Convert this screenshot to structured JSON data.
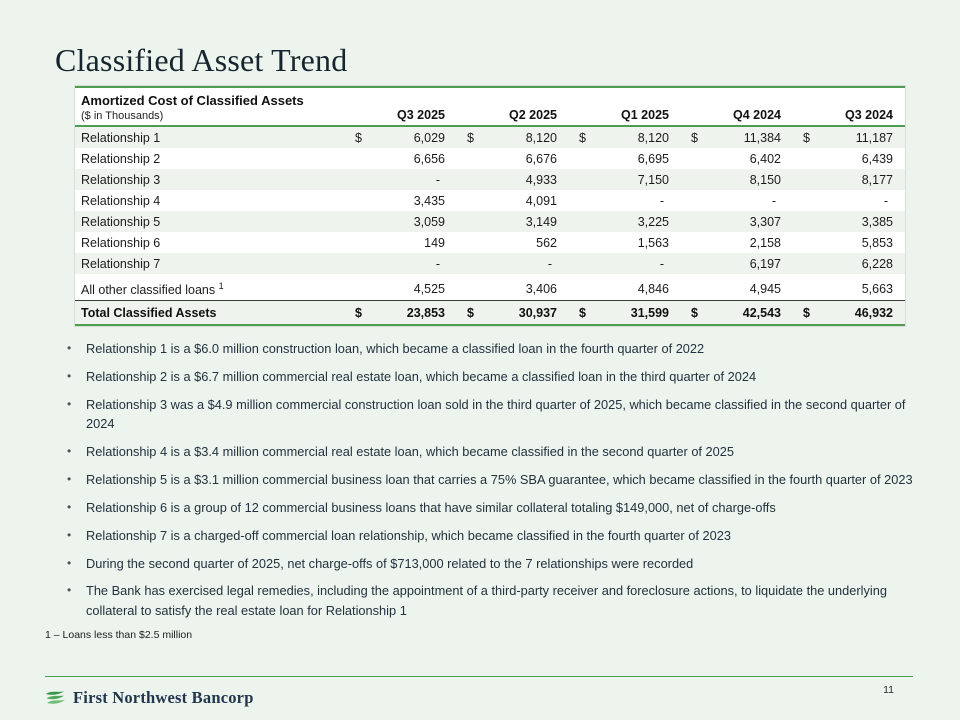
{
  "slide": {
    "title": "Classified Asset Trend",
    "page_number": "11",
    "footnote": "1 – Loans less than $2.5 million",
    "logo_text": "First Northwest Bancorp"
  },
  "colors": {
    "background": "#edf3ed",
    "accent_green": "#4f9d53",
    "title_text": "#16262e",
    "logo_navy": "#21364c",
    "row_stripe": "#eef3ee"
  },
  "icons": {
    "logo": "green-waves-icon"
  },
  "table": {
    "title": "Amortized Cost of Classified Assets",
    "subtitle": "($ in Thousands)",
    "currency_symbol": "$",
    "columns": [
      "Q3 2025",
      "Q2 2025",
      "Q1 2025",
      "Q4 2024",
      "Q3 2024"
    ],
    "rows": [
      {
        "label": "Relationship 1",
        "show_dollar": true,
        "footnote_ref": "",
        "values": [
          "6,029",
          "8,120",
          "8,120",
          "11,384",
          "11,187"
        ]
      },
      {
        "label": "Relationship 2",
        "show_dollar": false,
        "footnote_ref": "",
        "values": [
          "6,656",
          "6,676",
          "6,695",
          "6,402",
          "6,439"
        ]
      },
      {
        "label": "Relationship 3",
        "show_dollar": false,
        "footnote_ref": "",
        "values": [
          "-",
          "4,933",
          "7,150",
          "8,150",
          "8,177"
        ]
      },
      {
        "label": "Relationship 4",
        "show_dollar": false,
        "footnote_ref": "",
        "values": [
          "3,435",
          "4,091",
          "-",
          "-",
          "-"
        ]
      },
      {
        "label": "Relationship 5",
        "show_dollar": false,
        "footnote_ref": "",
        "values": [
          "3,059",
          "3,149",
          "3,225",
          "3,307",
          "3,385"
        ]
      },
      {
        "label": "Relationship 6",
        "show_dollar": false,
        "footnote_ref": "",
        "values": [
          "149",
          "562",
          "1,563",
          "2,158",
          "5,853"
        ]
      },
      {
        "label": "Relationship 7",
        "show_dollar": false,
        "footnote_ref": "",
        "values": [
          "-",
          "-",
          "-",
          "6,197",
          "6,228"
        ]
      },
      {
        "label": "All other classified loans",
        "show_dollar": false,
        "footnote_ref": "1",
        "values": [
          "4,525",
          "3,406",
          "4,846",
          "4,945",
          "5,663"
        ]
      }
    ],
    "total": {
      "label": "Total Classified Assets",
      "show_dollar": true,
      "values": [
        "23,853",
        "30,937",
        "31,599",
        "42,543",
        "46,932"
      ]
    }
  },
  "bullets": [
    "Relationship 1 is a $6.0 million construction loan, which became a classified loan in the fourth quarter of 2022",
    "Relationship 2 is a $6.7 million commercial real estate loan, which became a classified loan in the third quarter of 2024",
    "Relationship 3 was a $4.9 million commercial construction loan sold in the third quarter of 2025, which became classified in the second quarter of 2024",
    "Relationship 4 is a $3.4 million commercial real estate loan, which became classified in the second quarter of 2025",
    "Relationship 5 is a $3.1 million commercial business loan that carries a 75% SBA guarantee, which became classified in the fourth quarter of 2023",
    "Relationship 6 is a group of 12 commercial business loans that have similar collateral totaling $149,000, net of charge-offs",
    "Relationship 7 is a charged-off commercial loan relationship, which became classified in the fourth quarter of 2023",
    "During the second quarter of 2025, net charge-offs of $713,000 related to the 7 relationships were recorded",
    "The Bank has exercised legal remedies, including the appointment of a third-party receiver and foreclosure actions, to liquidate the underlying collateral to satisfy the real estate loan for Relationship 1"
  ]
}
